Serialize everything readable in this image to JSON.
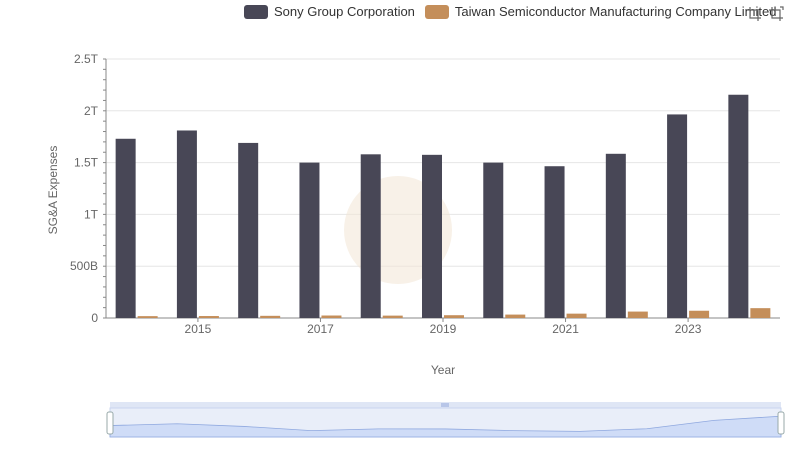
{
  "legend": {
    "series": [
      {
        "name": "Sony Group Corporation",
        "color": "#484756"
      },
      {
        "name": "Taiwan Semiconductor Manufacturing Company Limited",
        "color": "#c48e5a"
      }
    ]
  },
  "toolbox": {
    "icons": [
      "zoom-icon",
      "restore-icon"
    ]
  },
  "chart_data": {
    "type": "bar",
    "categories": [
      "2014",
      "2015",
      "2016",
      "2017",
      "2018",
      "2019",
      "2020",
      "2021",
      "2022",
      "2023",
      "2024"
    ],
    "x_tick_labels": [
      "2015",
      "2017",
      "2019",
      "2021",
      "2023"
    ],
    "y_tick_labels": [
      "0",
      "500B",
      "1T",
      "1.5T",
      "2T",
      "2.5T"
    ],
    "y_tick_values": [
      0,
      500000000000,
      1000000000000,
      1500000000000,
      2000000000000,
      2500000000000
    ],
    "ylim": [
      0,
      2500000000000
    ],
    "xlabel": "Year",
    "ylabel": "SG&A Expenses",
    "grid": true,
    "legend_position": "top",
    "series": [
      {
        "name": "Sony Group Corporation",
        "values": [
          1730000000000,
          1810000000000,
          1690000000000,
          1500000000000,
          1580000000000,
          1575000000000,
          1500000000000,
          1465000000000,
          1585000000000,
          1965000000000,
          2155000000000
        ]
      },
      {
        "name": "Taiwan Semiconductor Manufacturing Company Limited",
        "values": [
          18000000000,
          19000000000,
          21000000000,
          24000000000,
          23000000000,
          27000000000,
          33000000000,
          42000000000,
          62000000000,
          70000000000,
          95000000000
        ]
      }
    ]
  }
}
